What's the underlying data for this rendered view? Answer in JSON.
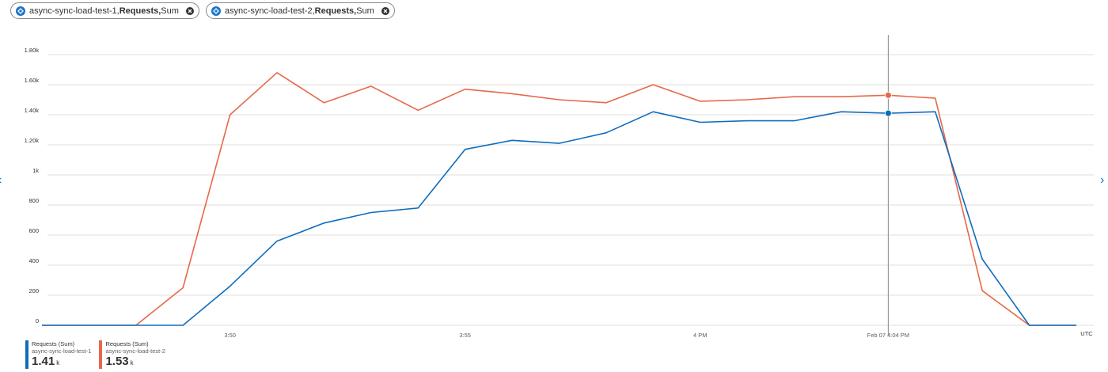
{
  "pills": [
    {
      "resource": "async-sync-load-test-1, ",
      "metric": "Requests, ",
      "agg": "Sum"
    },
    {
      "resource": "async-sync-load-test-2, ",
      "metric": "Requests, ",
      "agg": "Sum"
    }
  ],
  "nav": {
    "left": "‹",
    "right": "›"
  },
  "colors": {
    "series1": "#0f6cbd",
    "series2": "#e8684a",
    "grid": "#e1dfdd",
    "cursor": "#8a8886"
  },
  "chart_data": {
    "type": "line",
    "y_ticks": [
      {
        "v": 0,
        "label": "0"
      },
      {
        "v": 200,
        "label": "200"
      },
      {
        "v": 400,
        "label": "400"
      },
      {
        "v": 600,
        "label": "600"
      },
      {
        "v": 800,
        "label": "800"
      },
      {
        "v": 1000,
        "label": "1k"
      },
      {
        "v": 1200,
        "label": "1.20k"
      },
      {
        "v": 1400,
        "label": "1.40k"
      },
      {
        "v": 1600,
        "label": "1.60k"
      },
      {
        "v": 1800,
        "label": "1.80k"
      }
    ],
    "ylim": [
      0,
      1850
    ],
    "x": [
      "3:46",
      "3:47",
      "3:48",
      "3:49",
      "3:50",
      "3:51",
      "3:52",
      "3:53",
      "3:54",
      "3:55",
      "3:56",
      "3:57",
      "3:58",
      "3:59",
      "4:00",
      "4:01",
      "4:02",
      "4:03",
      "4:04",
      "4:05",
      "4:06",
      "4:07",
      "4:08"
    ],
    "x_ticks": [
      {
        "x": "3:50",
        "label": "3:50"
      },
      {
        "x": "3:55",
        "label": "3:55"
      },
      {
        "x": "4:00",
        "label": "4 PM"
      },
      {
        "x": "4:04",
        "label": "Feb 07 4:04 PM"
      }
    ],
    "timezone": "UTC",
    "series": [
      {
        "name": "async-sync-load-test-1",
        "values": [
          0,
          0,
          0,
          0,
          260,
          560,
          680,
          750,
          780,
          1170,
          1230,
          1210,
          1280,
          1420,
          1350,
          1360,
          1360,
          1420,
          1410,
          1420,
          440,
          0,
          0
        ]
      },
      {
        "name": "async-sync-load-test-2",
        "values": [
          0,
          0,
          0,
          250,
          1400,
          1680,
          1480,
          1590,
          1430,
          1570,
          1540,
          1500,
          1480,
          1600,
          1490,
          1500,
          1520,
          1520,
          1530,
          1510,
          230,
          0,
          0
        ]
      }
    ],
    "cursor_x": "4:04"
  },
  "legend": [
    {
      "l1": "Requests (Sum)",
      "l2": "async-sync-load-test-1",
      "value": "1.41",
      "unit": "k"
    },
    {
      "l1": "Requests (Sum)",
      "l2": "async-sync-load-test-2",
      "value": "1.53",
      "unit": "k"
    }
  ]
}
